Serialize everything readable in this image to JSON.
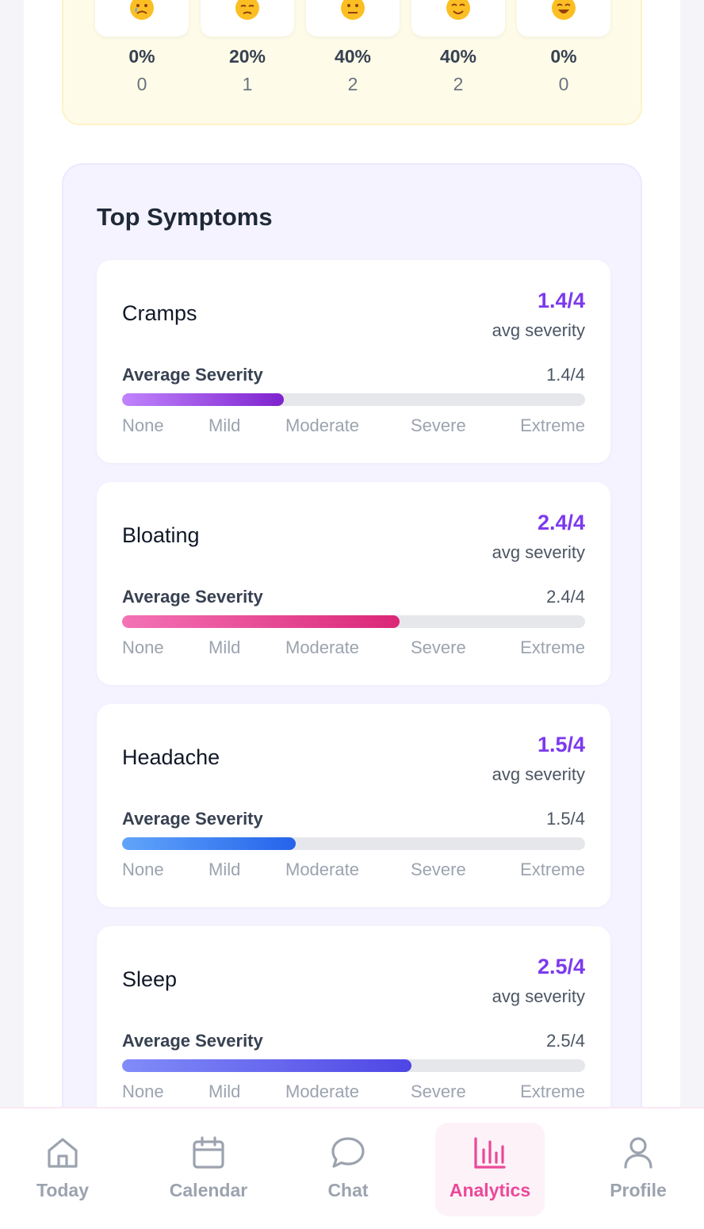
{
  "mood": {
    "items": [
      {
        "pct": "0%",
        "count": "0",
        "icon": "crying-face-icon"
      },
      {
        "pct": "20%",
        "count": "1",
        "icon": "pensive-face-icon"
      },
      {
        "pct": "40%",
        "count": "2",
        "icon": "neutral-face-icon"
      },
      {
        "pct": "40%",
        "count": "2",
        "icon": "smiling-face-icon"
      },
      {
        "pct": "0%",
        "count": "0",
        "icon": "grinning-face-icon"
      }
    ]
  },
  "symptoms": {
    "title": "Top Symptoms",
    "avg_label": "avg severity",
    "severity_label": "Average Severity",
    "scale": [
      "None",
      "Mild",
      "Moderate",
      "Severe",
      "Extreme"
    ],
    "items": [
      {
        "name": "Cramps",
        "score": "1.4/4",
        "value": 1.4,
        "max": 4,
        "color_from": "#c084fc",
        "color_to": "#7e22ce"
      },
      {
        "name": "Bloating",
        "score": "2.4/4",
        "value": 2.4,
        "max": 4,
        "color_from": "#f472b6",
        "color_to": "#db2777"
      },
      {
        "name": "Headache",
        "score": "1.5/4",
        "value": 1.5,
        "max": 4,
        "color_from": "#60a5fa",
        "color_to": "#2563eb"
      },
      {
        "name": "Sleep",
        "score": "2.5/4",
        "value": 2.5,
        "max": 4,
        "color_from": "#818cf8",
        "color_to": "#4f46e5"
      }
    ],
    "score_color": "#7c3aed"
  },
  "nav": {
    "items": [
      {
        "label": "Today",
        "icon": "home-icon",
        "active": false
      },
      {
        "label": "Calendar",
        "icon": "calendar-icon",
        "active": false
      },
      {
        "label": "Chat",
        "icon": "chat-bubble-icon",
        "active": false
      },
      {
        "label": "Analytics",
        "icon": "bar-chart-icon",
        "active": true
      },
      {
        "label": "Profile",
        "icon": "user-icon",
        "active": false
      }
    ],
    "active_color": "#ec4899",
    "inactive_color": "#9ca3af"
  }
}
